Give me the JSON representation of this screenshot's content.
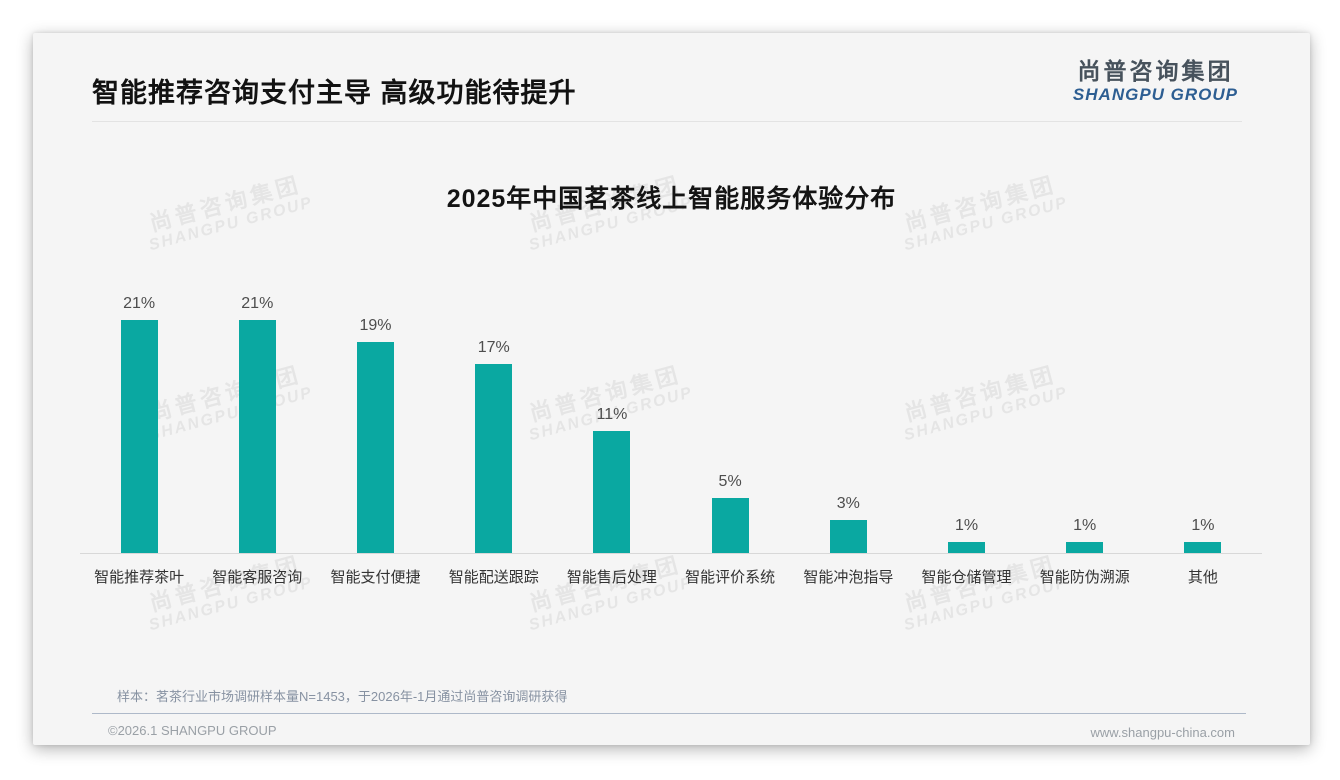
{
  "header": {
    "title": "智能推荐咨询支付主导 高级功能待提升",
    "logo": {
      "cn": "尚普咨询集团",
      "en": "SHANGPU GROUP"
    }
  },
  "chart_data": {
    "type": "bar",
    "title": "2025年中国茗茶线上智能服务体验分布",
    "categories": [
      "智能推荐茶叶",
      "智能客服咨询",
      "智能支付便捷",
      "智能配送跟踪",
      "智能售后处理",
      "智能评价系统",
      "智能冲泡指导",
      "智能仓储管理",
      "智能防伪溯源",
      "其他"
    ],
    "values": [
      21,
      21,
      19,
      17,
      11,
      5,
      3,
      1,
      1,
      1
    ],
    "unit": "%",
    "value_labels": [
      "21%",
      "21%",
      "19%",
      "17%",
      "11%",
      "5%",
      "3%",
      "1%",
      "1%",
      "1%"
    ],
    "xlabel": "",
    "ylabel": "",
    "ylim": [
      0,
      23
    ],
    "grid": false,
    "legend": "none",
    "bar_color": "#0aa8a1"
  },
  "footnote": "样本：茗茶行业市场调研样本量N=1453，于2026年-1月通过尚普咨询调研获得",
  "footer": {
    "left": "©2026.1 SHANGPU GROUP",
    "right": "www.shangpu-china.com"
  },
  "watermark": {
    "cn": "尚普咨询集团",
    "en": "SHANGPU GROUP"
  },
  "colors": {
    "bar": "#0aa8a1",
    "logo_cn": "#47525c",
    "logo_en": "#2d5e92",
    "slide_bg": "#f5f5f5",
    "value_label": "#4d4d4d",
    "category_label": "#333333",
    "footnote": "#8792a2"
  }
}
